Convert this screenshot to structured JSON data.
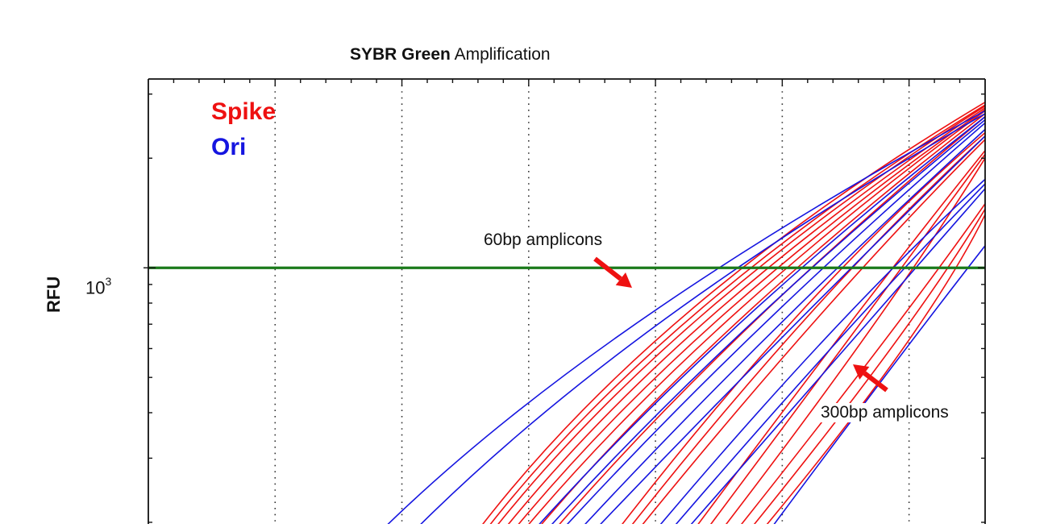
{
  "chart_data": {
    "type": "line",
    "title_bold": "SYBR Green",
    "title_rest": "Amplification",
    "xlabel": "",
    "ylabel": "RFU",
    "y_scale": "log",
    "y_tick_label_base": "10",
    "y_tick_label_exp": "3",
    "y_tick_value": 1000,
    "xlim": [
      0,
      33
    ],
    "ylim": [
      190,
      3300
    ],
    "grid": "x-dotted",
    "threshold": {
      "value": 1000,
      "color": "#1a7a1a"
    },
    "legend": [
      {
        "label": "Spike",
        "color": "#ee1111"
      },
      {
        "label": "Ori",
        "color": "#1515e0"
      }
    ],
    "annotations": [
      {
        "text": "60bp amplicons",
        "color": "#ee1111"
      },
      {
        "text": "300bp amplicons",
        "color": "#ee1111"
      }
    ],
    "series": [
      {
        "group": "Spike",
        "color": "#ee1111",
        "x": [
          13,
          20,
          33
        ],
        "y": [
          190,
          820,
          2850
        ]
      },
      {
        "group": "Spike",
        "color": "#ee1111",
        "x": [
          13.3,
          20.3,
          33
        ],
        "y": [
          190,
          800,
          2800
        ]
      },
      {
        "group": "Spike",
        "color": "#ee1111",
        "x": [
          13.6,
          20.6,
          33
        ],
        "y": [
          190,
          780,
          2780
        ]
      },
      {
        "group": "Spike",
        "color": "#ee1111",
        "x": [
          14,
          21,
          33
        ],
        "y": [
          190,
          760,
          2750
        ]
      },
      {
        "group": "Spike",
        "color": "#ee1111",
        "x": [
          14.4,
          21.4,
          33
        ],
        "y": [
          190,
          740,
          2720
        ]
      },
      {
        "group": "Spike",
        "color": "#ee1111",
        "x": [
          14.8,
          21.8,
          33
        ],
        "y": [
          190,
          720,
          2700
        ]
      },
      {
        "group": "Spike",
        "color": "#ee1111",
        "x": [
          15.3,
          22.2,
          33
        ],
        "y": [
          190,
          700,
          2650
        ]
      },
      {
        "group": "Spike",
        "color": "#ee1111",
        "x": [
          16,
          23,
          33
        ],
        "y": [
          190,
          690,
          2600
        ]
      },
      {
        "group": "Spike",
        "color": "#ee1111",
        "x": [
          18.5,
          26,
          33
        ],
        "y": [
          190,
          900,
          2350
        ]
      },
      {
        "group": "Spike",
        "color": "#ee1111",
        "x": [
          18.9,
          26.4,
          33
        ],
        "y": [
          190,
          870,
          2300
        ]
      },
      {
        "group": "Spike",
        "color": "#ee1111",
        "x": [
          19.3,
          26.9,
          33
        ],
        "y": [
          190,
          850,
          2250
        ]
      },
      {
        "group": "Spike",
        "color": "#ee1111",
        "x": [
          21.5,
          28.3,
          33
        ],
        "y": [
          190,
          820,
          2100
        ]
      },
      {
        "group": "Spike",
        "color": "#ee1111",
        "x": [
          22,
          28.7,
          33
        ],
        "y": [
          190,
          800,
          2050
        ]
      },
      {
        "group": "Spike",
        "color": "#ee1111",
        "x": [
          22.6,
          29.3,
          33
        ],
        "y": [
          190,
          770,
          2000
        ]
      },
      {
        "group": "Spike",
        "color": "#ee1111",
        "x": [
          23.2,
          29.8,
          33
        ],
        "y": [
          190,
          720,
          1500
        ]
      },
      {
        "group": "Spike",
        "color": "#ee1111",
        "x": [
          23.7,
          30.3,
          33
        ],
        "y": [
          190,
          700,
          1450
        ]
      },
      {
        "group": "Spike",
        "color": "#ee1111",
        "x": [
          24.2,
          30.8,
          33
        ],
        "y": [
          190,
          680,
          1400
        ]
      },
      {
        "group": "Ori",
        "color": "#1515e0",
        "x": [
          9.2,
          17.5,
          33
        ],
        "y": [
          190,
          700,
          2700
        ]
      },
      {
        "group": "Ori",
        "color": "#1515e0",
        "x": [
          10.5,
          18.8,
          33
        ],
        "y": [
          190,
          720,
          2650
        ]
      },
      {
        "group": "Ori",
        "color": "#1515e0",
        "x": [
          15.2,
          22.5,
          33
        ],
        "y": [
          190,
          700,
          2600
        ]
      },
      {
        "group": "Ori",
        "color": "#1515e0",
        "x": [
          15.7,
          23,
          33
        ],
        "y": [
          190,
          690,
          2550
        ]
      },
      {
        "group": "Ori",
        "color": "#1515e0",
        "x": [
          16.3,
          23.6,
          33
        ],
        "y": [
          190,
          680,
          2500
        ]
      },
      {
        "group": "Ori",
        "color": "#1515e0",
        "x": [
          17,
          24.3,
          33
        ],
        "y": [
          190,
          670,
          2400
        ]
      },
      {
        "group": "Ori",
        "color": "#1515e0",
        "x": [
          17.6,
          25,
          33
        ],
        "y": [
          190,
          660,
          2300
        ]
      },
      {
        "group": "Ori",
        "color": "#1515e0",
        "x": [
          20,
          27.3,
          33
        ],
        "y": [
          190,
          760,
          1750
        ]
      },
      {
        "group": "Ori",
        "color": "#1515e0",
        "x": [
          20.6,
          27.9,
          33
        ],
        "y": [
          190,
          740,
          1700
        ]
      },
      {
        "group": "Ori",
        "color": "#1515e0",
        "x": [
          21.2,
          28.5,
          33
        ],
        "y": [
          190,
          720,
          1650
        ]
      },
      {
        "group": "Ori",
        "color": "#1515e0",
        "x": [
          24.5,
          29.5,
          33
        ],
        "y": [
          190,
          560,
          1150
        ]
      }
    ]
  }
}
